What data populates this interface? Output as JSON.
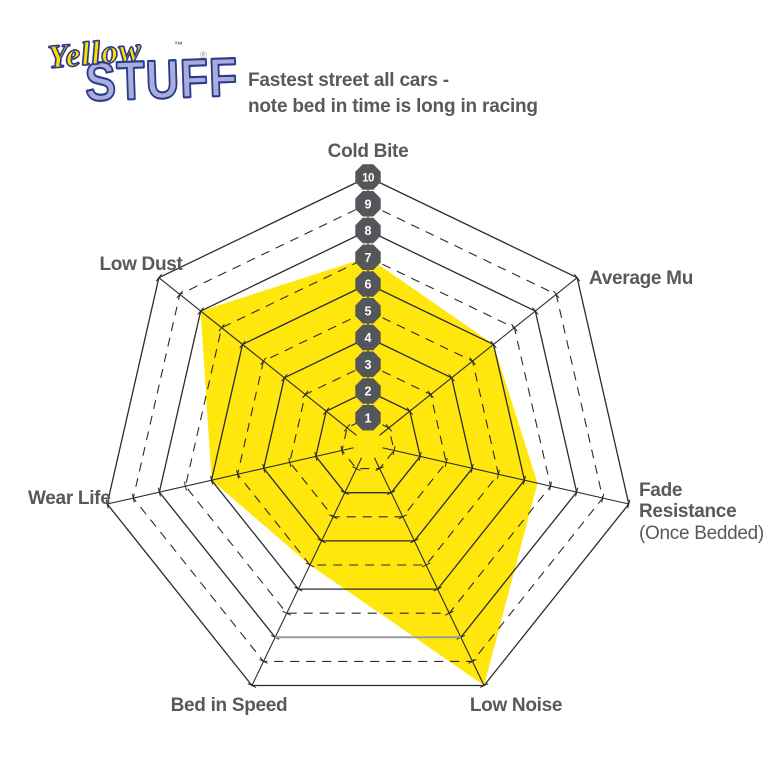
{
  "logo": {
    "word1": "Yellow",
    "word1_trademark": "™",
    "word2": "STUFF",
    "word2_registered": "®",
    "colors": {
      "word1_fill": "#FFDE00",
      "word2_fill": "#A8AEDC",
      "outline": "#2C3A8C"
    }
  },
  "header": {
    "subtitle_line1": "Fastest street all cars -",
    "subtitle_line2": "note bed in time is long in racing"
  },
  "chart_data": {
    "type": "radar",
    "axes": [
      {
        "label": "Cold Bite",
        "value": 7
      },
      {
        "label": "Average Mu",
        "value": 6
      },
      {
        "label": "Fade Resistance",
        "sublabel": "(Once Bedded)",
        "value": 6.5
      },
      {
        "label": "Low Noise",
        "value": 10
      },
      {
        "label": "Bed in Speed",
        "value": 5
      },
      {
        "label": "Wear Life",
        "value": 6
      },
      {
        "label": "Low Dust",
        "value": 8
      }
    ],
    "scale": {
      "min": 0,
      "max": 10,
      "step": 1,
      "ring_labels": [
        "1",
        "2",
        "3",
        "4",
        "5",
        "6",
        "7",
        "8",
        "9",
        "10"
      ],
      "grid_style": "even rings solid, odd rings dashed"
    },
    "ylim": [
      0,
      10
    ],
    "legend": "none",
    "colors": {
      "fill": "#FFE70E",
      "badge": "#54565A",
      "badge_text": "#FFFFFF",
      "grid": "#2B2B2B",
      "label_text": "#58595B"
    }
  }
}
